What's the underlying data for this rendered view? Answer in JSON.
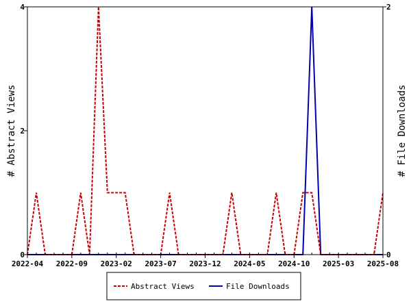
{
  "chart_data": {
    "type": "line",
    "x": [
      "2022-04",
      "2022-05",
      "2022-06",
      "2022-07",
      "2022-08",
      "2022-09",
      "2022-10",
      "2022-11",
      "2022-12",
      "2023-01",
      "2023-02",
      "2023-03",
      "2023-04",
      "2023-05",
      "2023-06",
      "2023-07",
      "2023-08",
      "2023-09",
      "2023-10",
      "2023-11",
      "2023-12",
      "2024-01",
      "2024-02",
      "2024-03",
      "2024-04",
      "2024-05",
      "2024-06",
      "2024-07",
      "2024-08",
      "2024-09",
      "2024-10",
      "2024-11",
      "2024-12",
      "2025-01",
      "2025-02",
      "2025-03",
      "2025-04",
      "2025-05",
      "2025-06",
      "2025-07",
      "2025-08"
    ],
    "series": [
      {
        "name": "Abstract Views",
        "axis": "left",
        "color": "#cc0000",
        "style": "dashed",
        "values": [
          0,
          1,
          0,
          0,
          0,
          0,
          1,
          0,
          4,
          1,
          1,
          1,
          0,
          0,
          0,
          0,
          1,
          0,
          0,
          0,
          0,
          0,
          0,
          1,
          0,
          0,
          0,
          0,
          1,
          0,
          0,
          1,
          1,
          0,
          0,
          0,
          0,
          0,
          0,
          0,
          1
        ]
      },
      {
        "name": "File Downloads",
        "axis": "right",
        "color": "#0000aa",
        "style": "solid",
        "values": [
          0,
          0,
          0,
          0,
          0,
          0,
          0,
          0,
          0,
          0,
          0,
          0,
          0,
          0,
          0,
          0,
          0,
          0,
          0,
          0,
          0,
          0,
          0,
          0,
          0,
          0,
          0,
          0,
          0,
          0,
          0,
          0,
          2,
          0,
          0,
          0,
          0,
          0,
          0,
          0,
          0
        ]
      }
    ],
    "x_tick_labels": [
      "2022-04",
      "2022-09",
      "2023-02",
      "2023-07",
      "2023-12",
      "2024-05",
      "2024-10",
      "2025-03",
      "2025-08"
    ],
    "y_left": {
      "label": "# Abstract Views",
      "ticks": [
        "0",
        "2",
        "4"
      ],
      "range": [
        0,
        4
      ]
    },
    "y_right": {
      "label": "# File Downloads",
      "ticks": [
        "0",
        "2"
      ],
      "range": [
        0,
        2
      ]
    },
    "title": "",
    "grid": false,
    "legend_position": "bottom-center"
  }
}
